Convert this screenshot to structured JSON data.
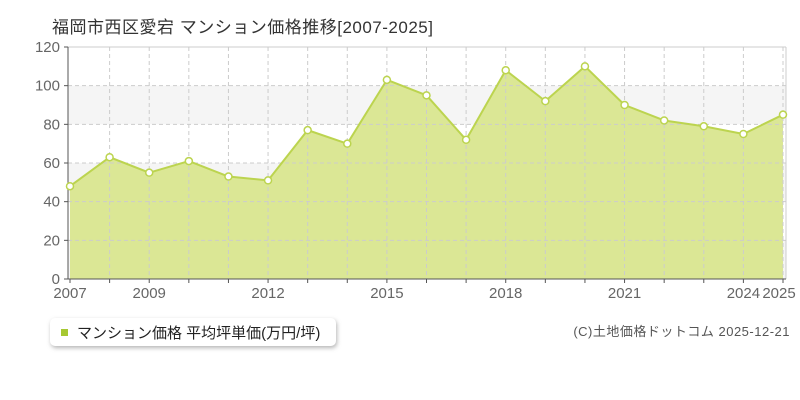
{
  "title": "福岡市西区愛宕 マンション価格推移[2007-2025]",
  "legend": {
    "label": "マンション価格 平均坪単価(万円/坪)",
    "marker_color": "#a6c832"
  },
  "copyright": "(C)土地価格ドットコム 2025-12-21",
  "chart_data": {
    "type": "area",
    "title": "福岡市西区愛宕 マンション価格推移[2007-2025]",
    "series_name": "マンション価格 平均坪単価(万円/坪)",
    "x": [
      2007,
      2008,
      2009,
      2010,
      2011,
      2012,
      2013,
      2014,
      2015,
      2016,
      2017,
      2018,
      2019,
      2020,
      2021,
      2022,
      2023,
      2024,
      2025
    ],
    "values": [
      48,
      63,
      55,
      61,
      53,
      51,
      77,
      70,
      103,
      95,
      72,
      108,
      92,
      110,
      90,
      82,
      79,
      75,
      85
    ],
    "ylabel": "万円/坪",
    "xlabel": "",
    "ylim": [
      0,
      120
    ],
    "yticks": [
      0,
      20,
      40,
      60,
      80,
      100,
      120
    ],
    "xticks_shown": [
      2007,
      2009,
      2012,
      2015,
      2018,
      2021,
      2024,
      2025
    ],
    "grid": "dashed",
    "legend_position": "bottom-left",
    "colors": {
      "area_fill": "#dbe795",
      "line": "#bcd44f",
      "marker_fill": "#ffffff",
      "band_gray": "#f5f5f5",
      "band_white": "#ffffff",
      "grid": "#cccccc",
      "axis": "#555555",
      "tick_label": "#666666"
    }
  }
}
